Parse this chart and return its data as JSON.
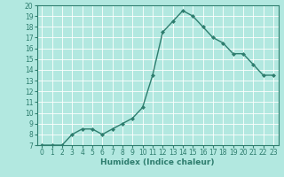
{
  "x": [
    0,
    1,
    2,
    3,
    4,
    5,
    6,
    7,
    8,
    9,
    10,
    11,
    12,
    13,
    14,
    15,
    16,
    17,
    18,
    19,
    20,
    21,
    22,
    23
  ],
  "y": [
    7.0,
    7.0,
    7.0,
    8.0,
    8.5,
    8.5,
    8.0,
    8.5,
    9.0,
    9.5,
    10.5,
    13.5,
    17.5,
    18.5,
    19.5,
    19.0,
    18.0,
    17.0,
    16.5,
    15.5,
    15.5,
    14.5,
    13.5,
    13.5
  ],
  "line_color": "#2e7d6e",
  "marker": "D",
  "marker_size": 2,
  "bg_color": "#b2e8e0",
  "grid_color": "#ffffff",
  "xlabel": "Humidex (Indice chaleur)",
  "ylim": [
    7,
    20
  ],
  "xlim": [
    -0.5,
    23.5
  ],
  "yticks": [
    7,
    8,
    9,
    10,
    11,
    12,
    13,
    14,
    15,
    16,
    17,
    18,
    19,
    20
  ],
  "xticks": [
    0,
    1,
    2,
    3,
    4,
    5,
    6,
    7,
    8,
    9,
    10,
    11,
    12,
    13,
    14,
    15,
    16,
    17,
    18,
    19,
    20,
    21,
    22,
    23
  ],
  "tick_color": "#2e7d6e",
  "label_color": "#2e7d6e",
  "xlabel_fontsize": 6.5,
  "tick_fontsize": 5.5,
  "linewidth": 1.0
}
